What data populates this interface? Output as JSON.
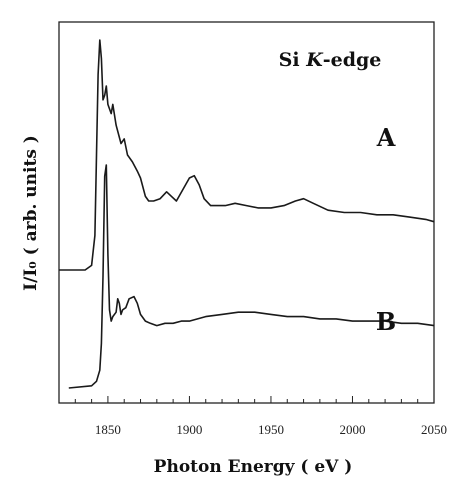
{
  "chart_data": {
    "type": "line",
    "title": "",
    "xlabel": "Photon Energy ( eV )",
    "ylabel": "I/I₀ ( arb. units )",
    "xlim": [
      1820,
      2050
    ],
    "xticks": [
      1850,
      1900,
      1950,
      2000,
      2050
    ],
    "y_ticks_shown": false,
    "grid": false,
    "annotations": {
      "edge_label_prefix": "Si ",
      "edge_label_italic": "K",
      "edge_label_suffix": "-edge",
      "curve_a_label": "A",
      "curve_b_label": "B"
    },
    "series": [
      {
        "name": "A",
        "color": "#1a1a1a",
        "points": [
          [
            1820,
            0.0
          ],
          [
            1836,
            0.0
          ],
          [
            1840,
            0.02
          ],
          [
            1842,
            0.15
          ],
          [
            1843,
            0.5
          ],
          [
            1844,
            0.85
          ],
          [
            1845,
            1.0
          ],
          [
            1846,
            0.92
          ],
          [
            1847,
            0.74
          ],
          [
            1848,
            0.76
          ],
          [
            1849,
            0.8
          ],
          [
            1850,
            0.72
          ],
          [
            1852,
            0.68
          ],
          [
            1853,
            0.72
          ],
          [
            1855,
            0.63
          ],
          [
            1858,
            0.55
          ],
          [
            1860,
            0.57
          ],
          [
            1862,
            0.5
          ],
          [
            1865,
            0.47
          ],
          [
            1868,
            0.43
          ],
          [
            1870,
            0.4
          ],
          [
            1873,
            0.32
          ],
          [
            1875,
            0.3
          ],
          [
            1878,
            0.3
          ],
          [
            1882,
            0.31
          ],
          [
            1886,
            0.34
          ],
          [
            1889,
            0.32
          ],
          [
            1892,
            0.3
          ],
          [
            1896,
            0.35
          ],
          [
            1900,
            0.4
          ],
          [
            1903,
            0.41
          ],
          [
            1906,
            0.37
          ],
          [
            1909,
            0.31
          ],
          [
            1913,
            0.28
          ],
          [
            1918,
            0.28
          ],
          [
            1922,
            0.28
          ],
          [
            1928,
            0.29
          ],
          [
            1935,
            0.28
          ],
          [
            1942,
            0.27
          ],
          [
            1950,
            0.27
          ],
          [
            1958,
            0.28
          ],
          [
            1965,
            0.3
          ],
          [
            1970,
            0.31
          ],
          [
            1976,
            0.29
          ],
          [
            1985,
            0.26
          ],
          [
            1995,
            0.25
          ],
          [
            2005,
            0.25
          ],
          [
            2015,
            0.24
          ],
          [
            2025,
            0.24
          ],
          [
            2035,
            0.23
          ],
          [
            2045,
            0.22
          ],
          [
            2050,
            0.21
          ]
        ]
      },
      {
        "name": "B",
        "color": "#1a1a1a",
        "points": [
          [
            1826,
            0.0
          ],
          [
            1840,
            0.01
          ],
          [
            1843,
            0.03
          ],
          [
            1845,
            0.08
          ],
          [
            1846,
            0.2
          ],
          [
            1847,
            0.5
          ],
          [
            1848,
            0.95
          ],
          [
            1849,
            1.0
          ],
          [
            1850,
            0.6
          ],
          [
            1851,
            0.35
          ],
          [
            1852,
            0.3
          ],
          [
            1853,
            0.32
          ],
          [
            1855,
            0.34
          ],
          [
            1856,
            0.4
          ],
          [
            1857,
            0.38
          ],
          [
            1858,
            0.33
          ],
          [
            1859,
            0.35
          ],
          [
            1861,
            0.36
          ],
          [
            1863,
            0.4
          ],
          [
            1866,
            0.41
          ],
          [
            1868,
            0.38
          ],
          [
            1870,
            0.33
          ],
          [
            1873,
            0.3
          ],
          [
            1876,
            0.29
          ],
          [
            1880,
            0.28
          ],
          [
            1885,
            0.29
          ],
          [
            1890,
            0.29
          ],
          [
            1895,
            0.3
          ],
          [
            1900,
            0.3
          ],
          [
            1910,
            0.32
          ],
          [
            1920,
            0.33
          ],
          [
            1930,
            0.34
          ],
          [
            1940,
            0.34
          ],
          [
            1950,
            0.33
          ],
          [
            1960,
            0.32
          ],
          [
            1970,
            0.32
          ],
          [
            1980,
            0.31
          ],
          [
            1990,
            0.31
          ],
          [
            2000,
            0.3
          ],
          [
            2010,
            0.3
          ],
          [
            2020,
            0.3
          ],
          [
            2030,
            0.29
          ],
          [
            2040,
            0.29
          ],
          [
            2050,
            0.28
          ]
        ]
      }
    ]
  }
}
